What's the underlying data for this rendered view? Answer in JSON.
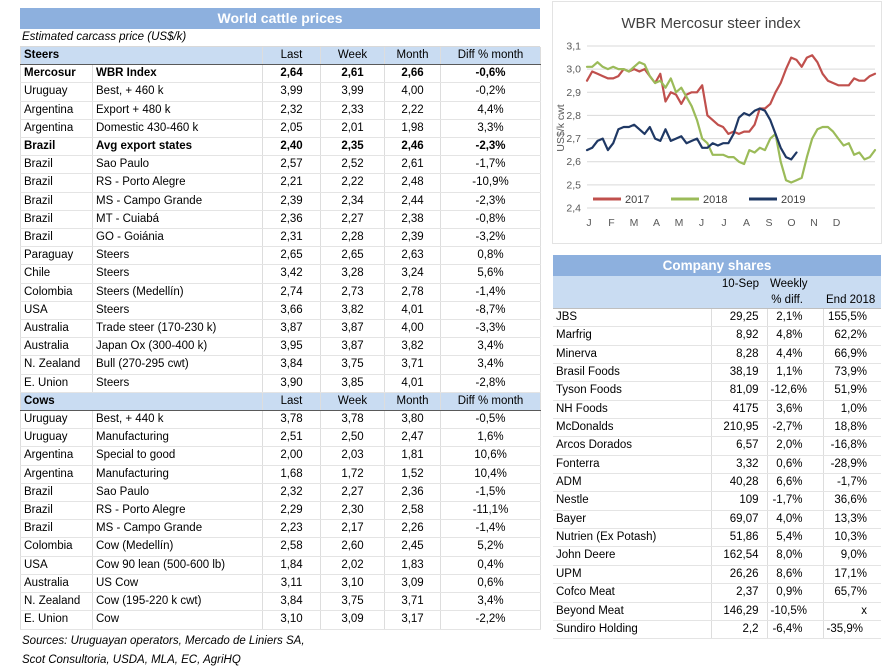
{
  "colors": {
    "title_band": "#8DB0DE",
    "header_fill": "#C9DCF2",
    "grid": "#D9D9D9",
    "axis_text": "#595959",
    "series_2017": "#C0504D",
    "series_2018": "#9BBB59",
    "series_2019": "#1F3864"
  },
  "cattle_table": {
    "title": "World cattle prices",
    "subtitle": "Estimated carcass price (US$/k)",
    "steers_label": "Steers",
    "cows_label": "Cows",
    "columns": [
      "Last",
      "Week",
      "Month",
      "Diff % month"
    ],
    "steers_rows": [
      {
        "c": [
          "Mercosur",
          "WBR Index",
          "2,64",
          "2,61",
          "2,66",
          "-0,6%"
        ],
        "b": true
      },
      {
        "c": [
          "Uruguay",
          "Best, + 460 k",
          "3,99",
          "3,99",
          "4,00",
          "-0,2%"
        ]
      },
      {
        "c": [
          "Argentina",
          "Export + 480 k",
          "2,32",
          "2,33",
          "2,22",
          "4,4%"
        ]
      },
      {
        "c": [
          "Argentina",
          "Domestic 430-460 k",
          "2,05",
          "2,01",
          "1,98",
          "3,3%"
        ]
      },
      {
        "c": [
          "Brazil",
          "Avg export states",
          "2,40",
          "2,35",
          "2,46",
          "-2,3%"
        ],
        "b": true
      },
      {
        "c": [
          "Brazil",
          "Sao Paulo",
          "2,57",
          "2,52",
          "2,61",
          "-1,7%"
        ]
      },
      {
        "c": [
          "Brazil",
          "RS - Porto Alegre",
          "2,21",
          "2,22",
          "2,48",
          "-10,9%"
        ]
      },
      {
        "c": [
          "Brazil",
          "MS - Campo Grande",
          "2,39",
          "2,34",
          "2,44",
          "-2,3%"
        ]
      },
      {
        "c": [
          "Brazil",
          "MT - Cuiabá",
          "2,36",
          "2,27",
          "2,38",
          "-0,8%"
        ]
      },
      {
        "c": [
          "Brazil",
          "GO - Goiánia",
          "2,31",
          "2,28",
          "2,39",
          "-3,2%"
        ]
      },
      {
        "c": [
          "Paraguay",
          "Steers",
          "2,65",
          "2,65",
          "2,63",
          "0,8%"
        ]
      },
      {
        "c": [
          "Chile",
          "Steers",
          "3,42",
          "3,28",
          "3,24",
          "5,6%"
        ]
      },
      {
        "c": [
          "Colombia",
          "Steers (Medellín)",
          "2,74",
          "2,73",
          "2,78",
          "-1,4%"
        ]
      },
      {
        "c": [
          "USA",
          "Steers",
          "3,66",
          "3,82",
          "4,01",
          "-8,7%"
        ]
      },
      {
        "c": [
          "Australia",
          "Trade steer (170-230 k)",
          "3,87",
          "3,87",
          "4,00",
          "-3,3%"
        ]
      },
      {
        "c": [
          "Australia",
          "Japan Ox (300-400 k)",
          "3,95",
          "3,87",
          "3,82",
          "3,4%"
        ]
      },
      {
        "c": [
          "N. Zealand",
          "Bull (270-295 cwt)",
          "3,84",
          "3,75",
          "3,71",
          "3,4%"
        ]
      },
      {
        "c": [
          "E. Union",
          "Steers",
          "3,90",
          "3,85",
          "4,01",
          "-2,8%"
        ]
      }
    ],
    "cows_rows": [
      {
        "c": [
          "Uruguay",
          "Best, + 440 k",
          "3,78",
          "3,78",
          "3,80",
          "-0,5%"
        ]
      },
      {
        "c": [
          "Uruguay",
          "Manufacturing",
          "2,51",
          "2,50",
          "2,47",
          "1,6%"
        ]
      },
      {
        "c": [
          "Argentina",
          "Special to good",
          "2,00",
          "2,03",
          "1,81",
          "10,6%"
        ]
      },
      {
        "c": [
          "Argentina",
          "Manufacturing",
          "1,68",
          "1,72",
          "1,52",
          "10,4%"
        ]
      },
      {
        "c": [
          "Brazil",
          "Sao Paulo",
          "2,32",
          "2,27",
          "2,36",
          "-1,5%"
        ]
      },
      {
        "c": [
          "Brazil",
          "RS - Porto Alegre",
          "2,29",
          "2,30",
          "2,58",
          "-11,1%"
        ]
      },
      {
        "c": [
          "Brazil",
          "MS - Campo Grande",
          "2,23",
          "2,17",
          "2,26",
          "-1,4%"
        ]
      },
      {
        "c": [
          "Colombia",
          "Cow (Medellín)",
          "2,58",
          "2,60",
          "2,45",
          "5,2%"
        ]
      },
      {
        "c": [
          "USA",
          "Cow 90 lean (500-600 lb)",
          "1,84",
          "2,02",
          "1,83",
          "0,4%"
        ]
      },
      {
        "c": [
          "Australia",
          "US Cow",
          "3,11",
          "3,10",
          "3,09",
          "0,6%"
        ]
      },
      {
        "c": [
          "N. Zealand",
          "Cow (195-220 k cwt)",
          "3,84",
          "3,75",
          "3,71",
          "3,4%"
        ]
      },
      {
        "c": [
          "E. Union",
          "Cow",
          "3,10",
          "3,09",
          "3,17",
          "-2,2%"
        ]
      }
    ],
    "sources_line1": "Sources: Uruguayan operators, Mercado de Liniers SA,",
    "sources_line2": "Scot Consultoria, USDA, MLA, EC, AgriHQ"
  },
  "chart_data": {
    "type": "line",
    "title": "WBR Mercosur steer index",
    "ylabel": "US$/k cwt",
    "ylim": [
      2.4,
      3.1
    ],
    "ytick_labels": [
      "3,1",
      "3,0",
      "2,9",
      "2,8",
      "2,7",
      "2,6",
      "2,5",
      "2,4"
    ],
    "x_labels": [
      "J",
      "F",
      "M",
      "A",
      "M",
      "J",
      "J",
      "A",
      "S",
      "O",
      "N",
      "D"
    ],
    "grid": true,
    "legend_position": "bottom-left-inside",
    "points_per_year": 56,
    "series": [
      {
        "name": "2017",
        "color": "#C0504D",
        "values": [
          2.95,
          2.99,
          2.98,
          2.97,
          2.96,
          2.96,
          2.97,
          3.0,
          2.99,
          3.0,
          2.99,
          3.0,
          2.97,
          2.94,
          2.98,
          2.86,
          2.9,
          2.89,
          2.85,
          2.89,
          2.9,
          2.9,
          2.93,
          2.8,
          2.78,
          2.76,
          2.75,
          2.72,
          2.73,
          2.72,
          2.73,
          2.73,
          2.76,
          2.83,
          2.83,
          2.85,
          2.9,
          2.94,
          3.0,
          3.05,
          3.04,
          3.01,
          3.05,
          3.06,
          3.03,
          2.98,
          2.95,
          2.94,
          2.93,
          2.93,
          2.93,
          2.96,
          2.95,
          2.95,
          2.97,
          2.98
        ]
      },
      {
        "name": "2018",
        "color": "#9BBB59",
        "values": [
          3.01,
          3.01,
          3.03,
          3.01,
          3.0,
          3.01,
          3.0,
          3.0,
          2.99,
          3.01,
          3.03,
          3.02,
          2.97,
          2.94,
          2.95,
          2.92,
          2.96,
          2.9,
          2.92,
          2.88,
          2.84,
          2.78,
          2.7,
          2.68,
          2.63,
          2.63,
          2.63,
          2.62,
          2.62,
          2.6,
          2.59,
          2.65,
          2.64,
          2.66,
          2.65,
          2.7,
          2.72,
          2.6,
          2.52,
          2.51,
          2.52,
          2.53,
          2.62,
          2.7,
          2.74,
          2.75,
          2.75,
          2.73,
          2.7,
          2.67,
          2.68,
          2.63,
          2.64,
          2.61,
          2.62,
          2.65
        ]
      },
      {
        "name": "2019",
        "color": "#1F3864",
        "values": [
          2.65,
          2.66,
          2.69,
          2.7,
          2.65,
          2.68,
          2.74,
          2.75,
          2.75,
          2.76,
          2.74,
          2.72,
          2.75,
          2.7,
          2.69,
          2.74,
          2.69,
          2.7,
          2.71,
          2.68,
          2.69,
          2.7,
          2.66,
          2.66,
          2.68,
          2.67,
          2.68,
          2.68,
          2.72,
          2.79,
          2.81,
          2.8,
          2.82,
          2.83,
          2.82,
          2.78,
          2.72,
          2.66,
          2.62,
          2.61,
          2.64
        ]
      }
    ]
  },
  "shares_table": {
    "title": "Company shares",
    "header": {
      "date": "10-Sep",
      "weekly_line1": "Weekly",
      "weekly_line2": "% diff.",
      "end_2018": "End 2018"
    },
    "rows": [
      {
        "c": [
          "JBS",
          "29,25",
          "2,1%",
          "155,5%"
        ]
      },
      {
        "c": [
          "Marfrig",
          "8,92",
          "4,8%",
          "62,2%"
        ]
      },
      {
        "c": [
          "Minerva",
          "8,28",
          "4,4%",
          "66,9%"
        ]
      },
      {
        "c": [
          "Brasil Foods",
          "38,19",
          "1,1%",
          "73,9%"
        ]
      },
      {
        "c": [
          "Tyson Foods",
          "81,09",
          "-12,6%",
          "51,9%"
        ]
      },
      {
        "c": [
          "NH Foods",
          "4175",
          "3,6%",
          "1,0%"
        ]
      },
      {
        "c": [
          "McDonalds",
          "210,95",
          "-2,7%",
          "18,8%"
        ]
      },
      {
        "c": [
          "Arcos Dorados",
          "6,57",
          "2,0%",
          "-16,8%"
        ]
      },
      {
        "c": [
          "Fonterra",
          "3,32",
          "0,6%",
          "-28,9%"
        ]
      },
      {
        "c": [
          "ADM",
          "40,28",
          "6,6%",
          "-1,7%"
        ]
      },
      {
        "c": [
          "Nestle",
          "109",
          "-1,7%",
          "36,6%"
        ]
      },
      {
        "c": [
          "Bayer",
          "69,07",
          "4,0%",
          "13,3%"
        ]
      },
      {
        "c": [
          "Nutrien (Ex Potash)",
          "51,86",
          "5,4%",
          "10,3%"
        ]
      },
      {
        "c": [
          "John Deere",
          "162,54",
          "8,0%",
          "9,0%"
        ]
      },
      {
        "c": [
          "UPM",
          "26,26",
          "8,6%",
          "17,1%"
        ]
      },
      {
        "c": [
          "Cofco Meat",
          "2,37",
          "0,9%",
          "65,7%"
        ]
      },
      {
        "c": [
          "Beyond Meat",
          "146,29",
          "-10,5%",
          "x"
        ]
      },
      {
        "c": [
          "Sundiro Holding",
          "2,2",
          "-6,4%",
          "-35,9%"
        ]
      }
    ]
  }
}
